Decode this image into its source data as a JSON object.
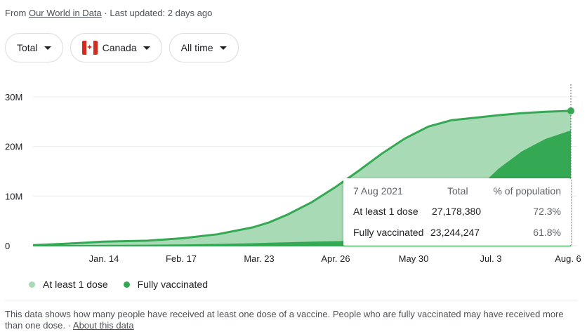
{
  "source": {
    "prefix": "From",
    "link": "Our World in Data",
    "separator": "·",
    "updated": "Last updated: 2 days ago"
  },
  "filters": {
    "metric": "Total",
    "country": "Canada",
    "range": "All time"
  },
  "chart_data": {
    "type": "area",
    "x_tick_labels": [
      "Jan. 14",
      "Feb. 17",
      "Mar. 23",
      "Apr. 26",
      "May 30",
      "Jul. 3",
      "Aug. 6"
    ],
    "y_tick_labels": [
      "0",
      "10M",
      "20M",
      "30M"
    ],
    "ylim": [
      0,
      30000000
    ],
    "x_days": [
      0,
      14,
      30,
      49,
      64,
      79,
      94,
      101,
      109,
      119,
      129,
      139,
      149,
      159,
      169,
      179,
      189,
      199,
      209,
      219,
      230,
      234
    ],
    "series": [
      {
        "name": "At least 1 dose",
        "color": "#a8dab5",
        "values": [
          100000,
          400000,
          800000,
          1000000,
          1500000,
          2300000,
          3700000,
          4700000,
          6300000,
          8700000,
          11700000,
          15000000,
          18500000,
          21600000,
          24000000,
          25300000,
          25800000,
          26300000,
          26700000,
          27000000,
          27178380,
          27178380
        ]
      },
      {
        "name": "Fully vaccinated",
        "color": "#34a853",
        "values": [
          0,
          50000,
          150000,
          200000,
          250000,
          350000,
          500000,
          600000,
          700000,
          800000,
          900000,
          1000000,
          1200000,
          1500000,
          2500000,
          5500000,
          11000000,
          15500000,
          19000000,
          21500000,
          23244247,
          23244247
        ]
      }
    ],
    "grid": true,
    "legend": "bottom-left"
  },
  "tooltip": {
    "date": "7 Aug 2021",
    "col_total": "Total",
    "col_pct": "% of population",
    "rows": [
      {
        "label": "At least 1 dose",
        "total": "27,178,380",
        "pct": "72.3%"
      },
      {
        "label": "Fully vaccinated",
        "total": "23,244,247",
        "pct": "61.8%"
      }
    ]
  },
  "legend": [
    {
      "label": "At least 1 dose",
      "color": "#a8dab5"
    },
    {
      "label": "Fully vaccinated",
      "color": "#34a853"
    }
  ],
  "footnote": {
    "text": "This data shows how many people have received at least one dose of a vaccine. People who are fully vaccinated may have received more than one dose.",
    "separator": "·",
    "link": "About this data"
  }
}
